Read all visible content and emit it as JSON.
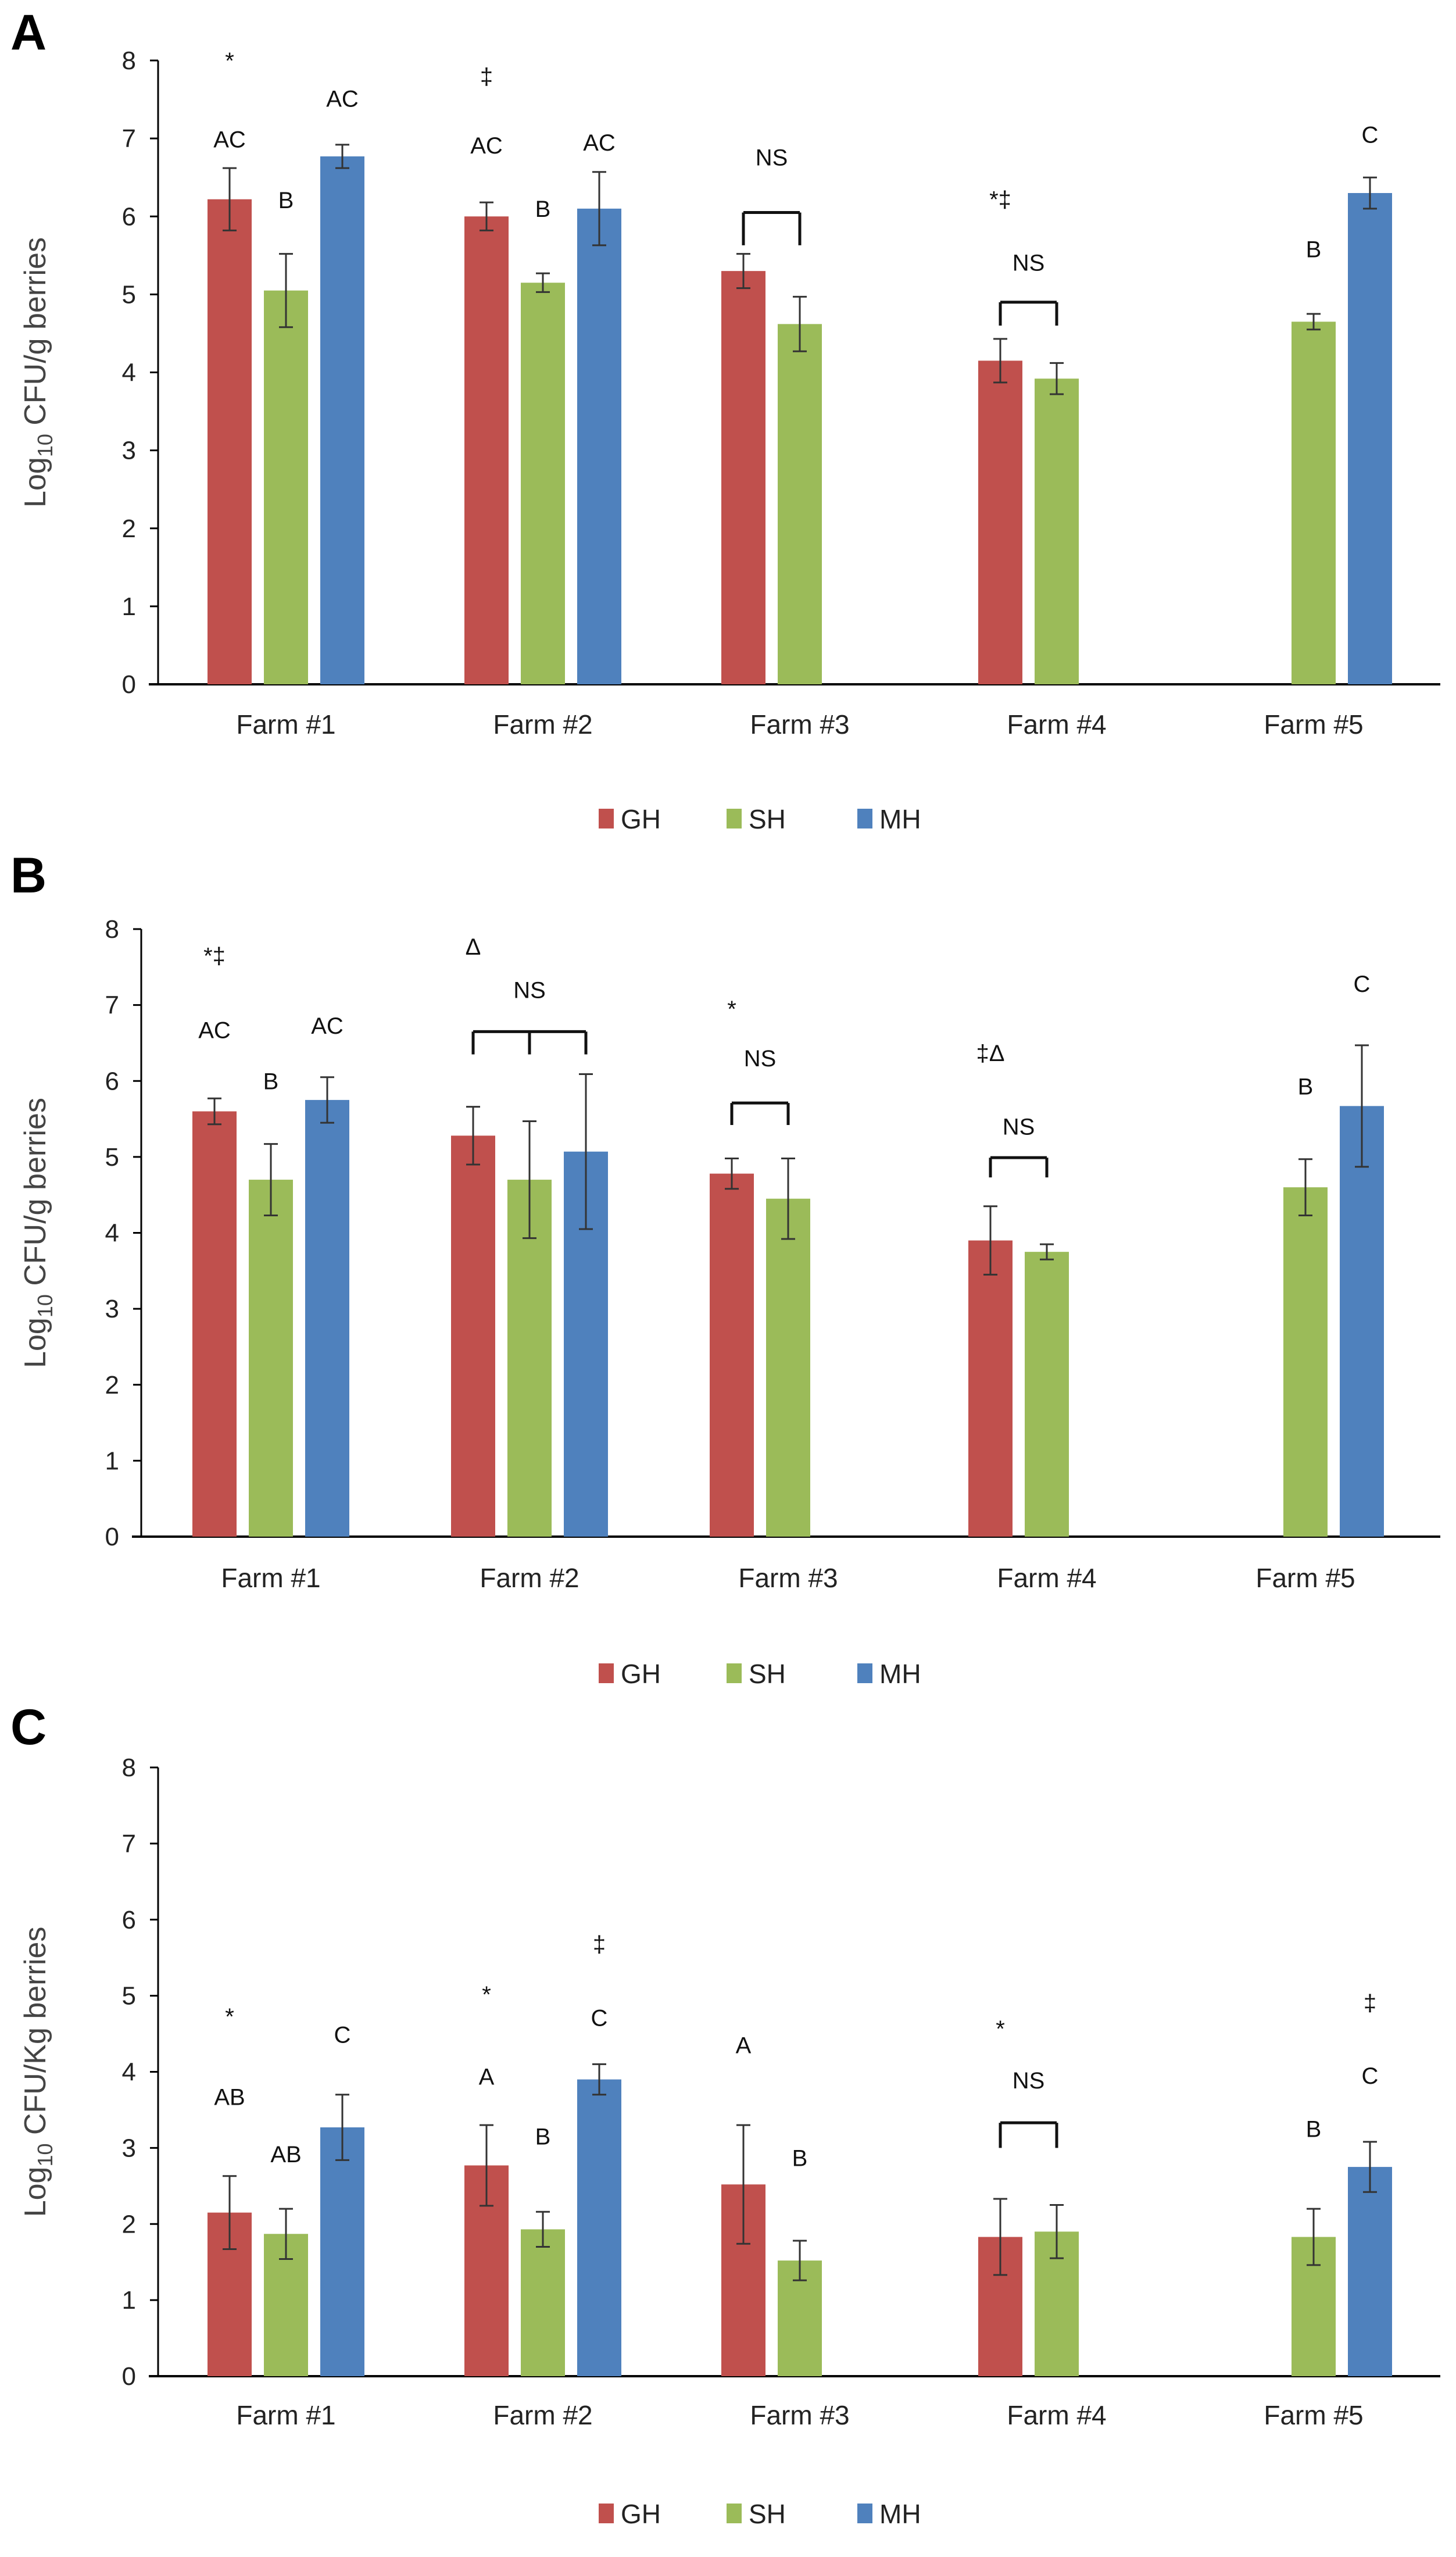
{
  "chart_data": [
    {
      "type": "bar",
      "panel_label": "A",
      "ylabel": {
        "main": "Log",
        "sub": "10",
        "rest": " CFU/g berries"
      },
      "ylim": [
        0,
        8
      ],
      "yticks": [
        "0",
        "1",
        "2",
        "3",
        "4",
        "5",
        "6",
        "7",
        "8"
      ],
      "categories": [
        "Farm #1",
        "Farm #2",
        "Farm #3",
        "Farm #4",
        "Farm #5"
      ],
      "legend": {
        "placement": "bottom-center"
      },
      "series": [
        {
          "name": "GH",
          "color": "#C0504D",
          "values": [
            6.22,
            6.0,
            5.3,
            4.15,
            null
          ],
          "errors": [
            0.4,
            0.18,
            0.22,
            0.28,
            null
          ]
        },
        {
          "name": "SH",
          "color": "#9BBB59",
          "values": [
            5.05,
            5.15,
            4.62,
            3.92,
            4.65
          ],
          "errors": [
            0.47,
            0.12,
            0.35,
            0.2,
            0.1
          ]
        },
        {
          "name": "MH",
          "color": "#4F81BD",
          "values": [
            6.77,
            6.1,
            null,
            null,
            6.3
          ],
          "errors": [
            0.15,
            0.47,
            null,
            null,
            0.2
          ]
        }
      ],
      "annotations": [
        {
          "farm": 0,
          "slot": 0,
          "y": 8.0,
          "text": "*"
        },
        {
          "farm": 0,
          "slot": 0,
          "y": 6.99,
          "text": "AC"
        },
        {
          "farm": 0,
          "slot": 1,
          "y": 6.21,
          "text": "B"
        },
        {
          "farm": 0,
          "slot": 2,
          "y": 7.51,
          "text": "AC"
        },
        {
          "farm": 1,
          "slot": 0,
          "y": 7.8,
          "text": "‡"
        },
        {
          "farm": 1,
          "slot": 0,
          "y": 6.91,
          "text": "AC"
        },
        {
          "farm": 1,
          "slot": 1,
          "y": 6.1,
          "text": "B"
        },
        {
          "farm": 1,
          "slot": 2,
          "y": 6.95,
          "text": "AC"
        },
        {
          "farm": 2,
          "slot": 0.5,
          "y": 6.76,
          "text": "NS"
        },
        {
          "farm": 3,
          "slot": 0,
          "y": 6.22,
          "text": "*‡"
        },
        {
          "farm": 3,
          "slot": 0.5,
          "y": 5.41,
          "text": "NS"
        },
        {
          "farm": 4,
          "slot": 1,
          "y": 5.58,
          "text": "B"
        },
        {
          "farm": 4,
          "slot": 2,
          "y": 7.05,
          "text": "C"
        }
      ],
      "brackets": [
        {
          "farm": 2,
          "slots": [
            0,
            1
          ],
          "top": 6.05,
          "bottom": 5.63
        },
        {
          "farm": 3,
          "slots": [
            0,
            1
          ],
          "top": 4.9,
          "bottom": 4.6
        }
      ]
    },
    {
      "type": "bar",
      "panel_label": "B",
      "ylabel": {
        "main": "Log",
        "sub": "10",
        "rest": " CFU/g berries"
      },
      "ylim": [
        0,
        8
      ],
      "yticks": [
        "0",
        "1",
        "2",
        "3",
        "4",
        "5",
        "6",
        "7",
        "8"
      ],
      "categories": [
        "Farm #1",
        "Farm #2",
        "Farm #3",
        "Farm #4",
        "Farm #5"
      ],
      "legend": {
        "placement": "bottom-center"
      },
      "series": [
        {
          "name": "GH",
          "color": "#C0504D",
          "values": [
            5.6,
            5.28,
            4.78,
            3.9,
            null
          ],
          "errors": [
            0.17,
            0.38,
            0.2,
            0.45,
            null
          ]
        },
        {
          "name": "SH",
          "color": "#9BBB59",
          "values": [
            4.7,
            4.7,
            4.45,
            3.75,
            4.6
          ],
          "errors": [
            0.47,
            0.77,
            0.53,
            0.1,
            0.37
          ]
        },
        {
          "name": "MH",
          "color": "#4F81BD",
          "values": [
            5.75,
            5.07,
            null,
            null,
            5.67
          ],
          "errors": [
            0.3,
            1.02,
            null,
            null,
            0.8
          ]
        }
      ],
      "annotations": [
        {
          "farm": 0,
          "slot": 0,
          "y": 7.65,
          "text": "*‡"
        },
        {
          "farm": 0,
          "slot": 0,
          "y": 6.67,
          "text": "AC"
        },
        {
          "farm": 0,
          "slot": 1,
          "y": 6.0,
          "text": "B"
        },
        {
          "farm": 0,
          "slot": 2,
          "y": 6.73,
          "text": "AC"
        },
        {
          "farm": 1,
          "slot": 0,
          "y": 7.77,
          "text": "Δ"
        },
        {
          "farm": 1,
          "slot": 1,
          "y": 7.2,
          "text": "NS"
        },
        {
          "farm": 2,
          "slot": 0,
          "y": 6.95,
          "text": "*"
        },
        {
          "farm": 2,
          "slot": 0.5,
          "y": 6.3,
          "text": "NS"
        },
        {
          "farm": 3,
          "slot": 0,
          "y": 6.37,
          "text": "‡Δ"
        },
        {
          "farm": 3,
          "slot": 0.5,
          "y": 5.4,
          "text": "NS"
        },
        {
          "farm": 4,
          "slot": 1,
          "y": 5.93,
          "text": "B"
        },
        {
          "farm": 4,
          "slot": 2,
          "y": 7.28,
          "text": "C"
        }
      ],
      "brackets": [
        {
          "farm": 1,
          "slots": [
            0,
            1,
            2
          ],
          "top": 6.65,
          "bottom": 6.35
        },
        {
          "farm": 2,
          "slots": [
            0,
            1
          ],
          "top": 5.71,
          "bottom": 5.42
        },
        {
          "farm": 3,
          "slots": [
            0,
            1
          ],
          "top": 4.99,
          "bottom": 4.73
        }
      ]
    },
    {
      "type": "bar",
      "panel_label": "C",
      "ylabel": {
        "main": "Log",
        "sub": "10",
        "rest": " CFU/Kg berries"
      },
      "ylim": [
        0,
        8
      ],
      "yticks": [
        "0",
        "1",
        "2",
        "3",
        "4",
        "5",
        "6",
        "7",
        "8"
      ],
      "categories": [
        "Farm #1",
        "Farm #2",
        "Farm #3",
        "Farm #4",
        "Farm #5"
      ],
      "legend": {
        "placement": "bottom-center"
      },
      "series": [
        {
          "name": "GH",
          "color": "#C0504D",
          "values": [
            2.15,
            2.77,
            2.52,
            1.83,
            null
          ],
          "errors": [
            0.48,
            0.53,
            0.78,
            0.5,
            null
          ]
        },
        {
          "name": "SH",
          "color": "#9BBB59",
          "values": [
            1.87,
            1.93,
            1.52,
            1.9,
            1.83
          ],
          "errors": [
            0.33,
            0.23,
            0.26,
            0.35,
            0.37
          ]
        },
        {
          "name": "MH",
          "color": "#4F81BD",
          "values": [
            3.27,
            3.9,
            null,
            null,
            2.75
          ],
          "errors": [
            0.43,
            0.2,
            null,
            null,
            0.33
          ]
        }
      ],
      "annotations": [
        {
          "farm": 0,
          "slot": 0,
          "y": 4.73,
          "text": "*"
        },
        {
          "farm": 0,
          "slot": 0,
          "y": 3.67,
          "text": "AB"
        },
        {
          "farm": 0,
          "slot": 1,
          "y": 2.92,
          "text": "AB"
        },
        {
          "farm": 0,
          "slot": 2,
          "y": 4.49,
          "text": "C"
        },
        {
          "farm": 1,
          "slot": 0,
          "y": 5.02,
          "text": "*"
        },
        {
          "farm": 1,
          "slot": 0,
          "y": 3.94,
          "text": "A"
        },
        {
          "farm": 1,
          "slot": 1,
          "y": 3.15,
          "text": "B"
        },
        {
          "farm": 1,
          "slot": 2,
          "y": 5.68,
          "text": "‡"
        },
        {
          "farm": 1,
          "slot": 2,
          "y": 4.71,
          "text": "C"
        },
        {
          "farm": 2,
          "slot": 0,
          "y": 4.35,
          "text": "A"
        },
        {
          "farm": 2,
          "slot": 1,
          "y": 2.87,
          "text": "B"
        },
        {
          "farm": 3,
          "slot": 0,
          "y": 4.57,
          "text": "*"
        },
        {
          "farm": 3,
          "slot": 0.5,
          "y": 3.89,
          "text": "NS"
        },
        {
          "farm": 4,
          "slot": 1,
          "y": 3.25,
          "text": "B"
        },
        {
          "farm": 4,
          "slot": 2,
          "y": 4.91,
          "text": "‡"
        },
        {
          "farm": 4,
          "slot": 2,
          "y": 3.95,
          "text": "C"
        }
      ],
      "brackets": [
        {
          "farm": 3,
          "slots": [
            0,
            1
          ],
          "top": 3.33,
          "bottom": 3.0
        }
      ]
    }
  ]
}
